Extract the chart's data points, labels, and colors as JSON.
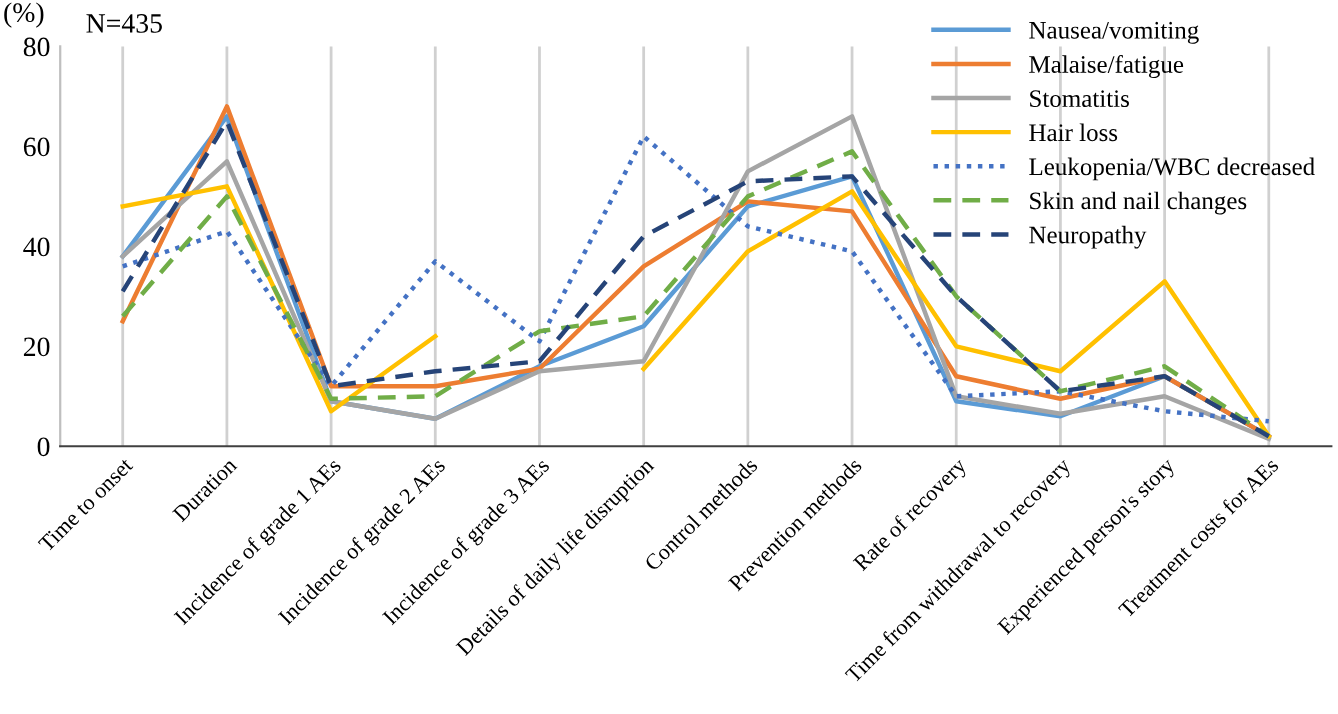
{
  "chart_data": {
    "type": "line",
    "ylabel": "(%)",
    "annotations": [
      "N=435"
    ],
    "categories": [
      "Time to onset",
      "Duration",
      "Incidence of grade 1 AEs",
      "Incidence of grade 2 AEs",
      "Incidence of grade 3 AEs",
      "Details of daily life disruption",
      "Control methods",
      "Prevention methods",
      "Rate of recovery",
      "Time from withdrawal to recovery",
      "Experienced person's story",
      "Treatment costs for AEs"
    ],
    "series": [
      {
        "name": "Nausea/vomiting",
        "color": "#5b9bd5",
        "line_style": "solid",
        "values": [
          38,
          66,
          9,
          5.5,
          16,
          24,
          48,
          54,
          9,
          6,
          14,
          2
        ]
      },
      {
        "name": "Malaise/fatigue",
        "color": "#ed7d31",
        "line_style": "solid",
        "values": [
          25,
          68,
          12,
          12,
          15.5,
          36,
          49,
          47,
          14,
          9.5,
          14,
          2
        ]
      },
      {
        "name": "Stomatitis",
        "color": "#a5a5a5",
        "line_style": "solid",
        "values": [
          38,
          57,
          9,
          5.5,
          15,
          17,
          55,
          66,
          10,
          6.5,
          10,
          1.5
        ]
      },
      {
        "name": "Hair loss",
        "color": "#ffc000",
        "line_style": "solid",
        "values": [
          48,
          52,
          7,
          22,
          null,
          15.5,
          39,
          51,
          20,
          15,
          33,
          2
        ]
      },
      {
        "name": "Leukopenia/WBC decreased",
        "color": "#4472c4",
        "line_style": "dotted",
        "values": [
          36,
          43,
          12,
          37,
          21,
          62,
          44,
          39,
          10,
          11,
          7,
          5
        ]
      },
      {
        "name": "Skin and nail changes",
        "color": "#70ad47",
        "line_style": "dashed",
        "values": [
          26,
          50,
          9.5,
          10,
          23,
          26,
          50,
          59,
          30,
          11,
          16,
          2
        ]
      },
      {
        "name": "Neuropathy",
        "color": "#264478",
        "line_style": "dashed",
        "values": [
          31,
          65,
          12,
          15,
          17,
          42,
          53,
          54,
          30,
          11,
          14,
          2
        ]
      }
    ],
    "ylim": [
      0,
      80
    ],
    "yticks": [
      0,
      20,
      40,
      60,
      80
    ],
    "grid": "x",
    "legend": "top right",
    "marker": "none"
  }
}
